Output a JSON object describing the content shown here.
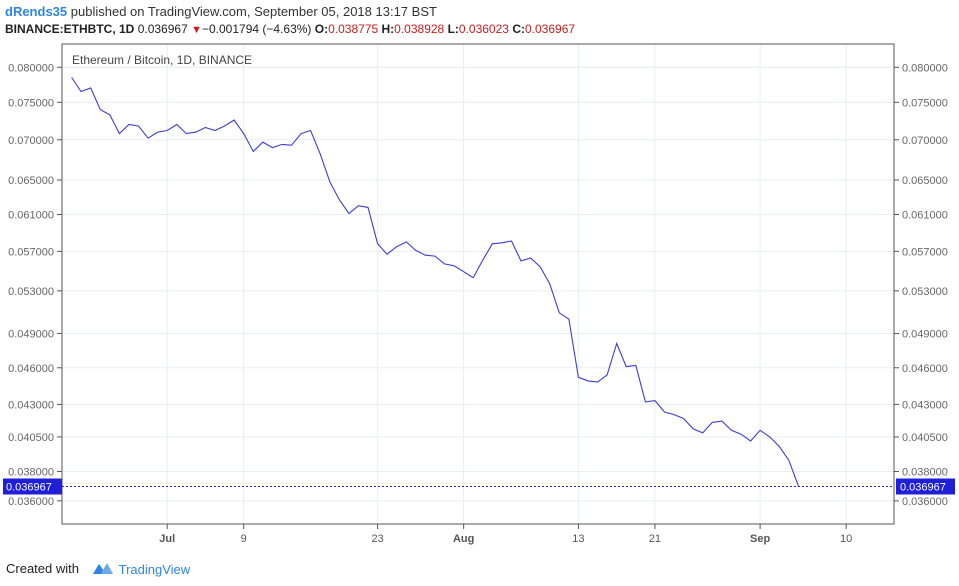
{
  "header": {
    "username": "dRends35",
    "published_text": "published on TradingView.com, September 05, 2018 13:17 BST",
    "symbol": "BINANCE:ETHBTC, 1D",
    "last": "0.036967",
    "change": "−0.001794 (−4.63%)",
    "open_label": "O:",
    "open": "0.038775",
    "high_label": "H:",
    "high": "0.038928",
    "low_label": "L:",
    "low": "0.036023",
    "close_label": "C:",
    "close": "0.036967"
  },
  "footer": {
    "created_with": "Created with",
    "brand": "TradingView"
  },
  "colors": {
    "line": "#3c3cd8",
    "price_label_bg": "#1f1fd8",
    "change_down": "#cc1c1c",
    "brand": "#2e84e6"
  },
  "chart_data": {
    "type": "line",
    "title": "Ethereum / Bitcoin, 1D, BINANCE",
    "y_ticks": [
      "0.080000",
      "0.075000",
      "0.070000",
      "0.065000",
      "0.061000",
      "0.057000",
      "0.053000",
      "0.049000",
      "0.046000",
      "0.043000",
      "0.040500",
      "0.038000",
      "0.036000"
    ],
    "y_tick_values": [
      0.08,
      0.075,
      0.07,
      0.065,
      0.061,
      0.057,
      0.053,
      0.049,
      0.046,
      0.043,
      0.0405,
      0.038,
      0.036
    ],
    "y_scale": "log",
    "ylim": [
      0.0345,
      0.0835
    ],
    "x_ticks": [
      {
        "label": "Jul",
        "date": "2018-07-01",
        "bold": true
      },
      {
        "label": "9",
        "date": "2018-07-09",
        "bold": false
      },
      {
        "label": "23",
        "date": "2018-07-23",
        "bold": false
      },
      {
        "label": "Aug",
        "date": "2018-08-01",
        "bold": true
      },
      {
        "label": "13",
        "date": "2018-08-13",
        "bold": false
      },
      {
        "label": "21",
        "date": "2018-08-21",
        "bold": false
      },
      {
        "label": "Sep",
        "date": "2018-09-01",
        "bold": true
      },
      {
        "label": "10",
        "date": "2018-09-10",
        "bold": false
      }
    ],
    "xlim": [
      "2018-06-20",
      "2018-09-15"
    ],
    "last_price": 0.036967,
    "last_price_label": "0.036967",
    "grid": true,
    "series": [
      {
        "x": [
          "2018-06-21",
          "2018-06-22",
          "2018-06-23",
          "2018-06-24",
          "2018-06-25",
          "2018-06-26",
          "2018-06-27",
          "2018-06-28",
          "2018-06-29",
          "2018-06-30",
          "2018-07-01",
          "2018-07-02",
          "2018-07-03",
          "2018-07-04",
          "2018-07-05",
          "2018-07-06",
          "2018-07-07",
          "2018-07-08",
          "2018-07-09",
          "2018-07-10",
          "2018-07-11",
          "2018-07-12",
          "2018-07-13",
          "2018-07-14",
          "2018-07-15",
          "2018-07-16",
          "2018-07-17",
          "2018-07-18",
          "2018-07-19",
          "2018-07-20",
          "2018-07-21",
          "2018-07-22",
          "2018-07-23",
          "2018-07-24",
          "2018-07-25",
          "2018-07-26",
          "2018-07-27",
          "2018-07-28",
          "2018-07-29",
          "2018-07-30",
          "2018-07-31",
          "2018-08-01",
          "2018-08-02",
          "2018-08-03",
          "2018-08-04",
          "2018-08-05",
          "2018-08-06",
          "2018-08-07",
          "2018-08-08",
          "2018-08-09",
          "2018-08-10",
          "2018-08-11",
          "2018-08-12",
          "2018-08-13",
          "2018-08-14",
          "2018-08-15",
          "2018-08-16",
          "2018-08-17",
          "2018-08-18",
          "2018-08-19",
          "2018-08-20",
          "2018-08-21",
          "2018-08-22",
          "2018-08-23",
          "2018-08-24",
          "2018-08-25",
          "2018-08-26",
          "2018-08-27",
          "2018-08-28",
          "2018-08-29",
          "2018-08-30",
          "2018-08-31",
          "2018-09-01",
          "2018-09-02",
          "2018-09-03",
          "2018-09-04",
          "2018-09-05"
        ],
        "values": [
          0.0785,
          0.0765,
          0.077,
          0.074,
          0.0733,
          0.0708,
          0.072,
          0.0718,
          0.0702,
          0.071,
          0.0712,
          0.072,
          0.0708,
          0.071,
          0.0716,
          0.0712,
          0.0718,
          0.0726,
          0.0708,
          0.0685,
          0.0697,
          0.069,
          0.0694,
          0.0693,
          0.0708,
          0.0712,
          0.0682,
          0.0648,
          0.0627,
          0.0611,
          0.062,
          0.0618,
          0.0578,
          0.0567,
          0.0575,
          0.058,
          0.0571,
          0.0566,
          0.0565,
          0.0557,
          0.0555,
          0.0549,
          0.0543,
          0.0561,
          0.0578,
          0.0579,
          0.0581,
          0.056,
          0.0563,
          0.0554,
          0.0537,
          0.0509,
          0.0503,
          0.0452,
          0.0449,
          0.0448,
          0.0454,
          0.0481,
          0.0461,
          0.0462,
          0.0432,
          0.0433,
          0.0424,
          0.0422,
          0.0419,
          0.0411,
          0.0408,
          0.0416,
          0.0417,
          0.041,
          0.0407,
          0.0402,
          0.041,
          0.0405,
          0.0398,
          0.0388,
          0.037
        ]
      }
    ]
  }
}
